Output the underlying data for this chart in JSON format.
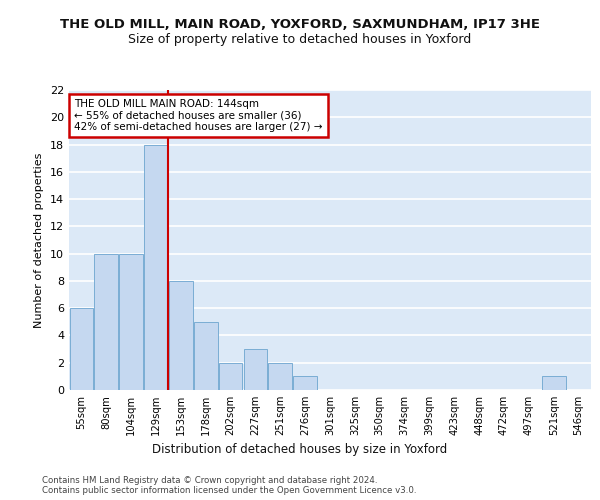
{
  "title1": "THE OLD MILL, MAIN ROAD, YOXFORD, SAXMUNDHAM, IP17 3HE",
  "title2": "Size of property relative to detached houses in Yoxford",
  "xlabel": "Distribution of detached houses by size in Yoxford",
  "ylabel": "Number of detached properties",
  "categories": [
    "55sqm",
    "80sqm",
    "104sqm",
    "129sqm",
    "153sqm",
    "178sqm",
    "202sqm",
    "227sqm",
    "251sqm",
    "276sqm",
    "301sqm",
    "325sqm",
    "350sqm",
    "374sqm",
    "399sqm",
    "423sqm",
    "448sqm",
    "472sqm",
    "497sqm",
    "521sqm",
    "546sqm"
  ],
  "values": [
    6,
    10,
    10,
    18,
    8,
    5,
    2,
    3,
    2,
    1,
    0,
    0,
    0,
    0,
    0,
    0,
    0,
    0,
    0,
    1,
    0
  ],
  "bar_color": "#c5d8f0",
  "bar_edge_color": "#7aadd4",
  "vline_color": "#cc0000",
  "vline_x": 3.5,
  "annotation_text": "THE OLD MILL MAIN ROAD: 144sqm\n← 55% of detached houses are smaller (36)\n42% of semi-detached houses are larger (27) →",
  "annotation_box_color": "#ffffff",
  "annotation_box_edge": "#cc0000",
  "ylim": [
    0,
    22
  ],
  "yticks": [
    0,
    2,
    4,
    6,
    8,
    10,
    12,
    14,
    16,
    18,
    20,
    22
  ],
  "footer": "Contains HM Land Registry data © Crown copyright and database right 2024.\nContains public sector information licensed under the Open Government Licence v3.0.",
  "bg_color": "#dce9f7",
  "grid_color": "#ffffff",
  "title1_fontsize": 9.5,
  "title2_fontsize": 9
}
